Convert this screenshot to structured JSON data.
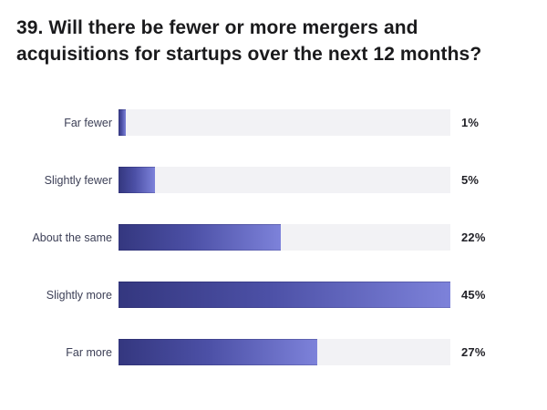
{
  "title": {
    "full": "39. Will there be fewer or more mergers and acquisitions for startups over the next 12 months?",
    "line1": "39. Will there be fewer or more mergers and",
    "line2": "acquisitions for startups over the next 12 months?"
  },
  "chart_data": {
    "type": "bar",
    "orientation": "horizontal",
    "title": "39. Will there be fewer or more mergers and acquisitions for startups over the next 12 months?",
    "categories": [
      "Far fewer",
      "Slightly fewer",
      "About the same",
      "Slightly more",
      "Far more"
    ],
    "values": [
      1,
      5,
      22,
      45,
      27
    ],
    "value_labels": [
      "1%",
      "5%",
      "22%",
      "45%",
      "27%"
    ],
    "unit": "%",
    "scale_max": 45,
    "grid": false,
    "legend": false,
    "colors": {
      "bar_gradient_start": "#34377f",
      "bar_gradient_end": "#7d82da",
      "track": "#f2f2f5",
      "title_text": "#1a1a1c",
      "category_text": "#3d4057",
      "value_text": "#222228",
      "background": "#ffffff"
    }
  }
}
